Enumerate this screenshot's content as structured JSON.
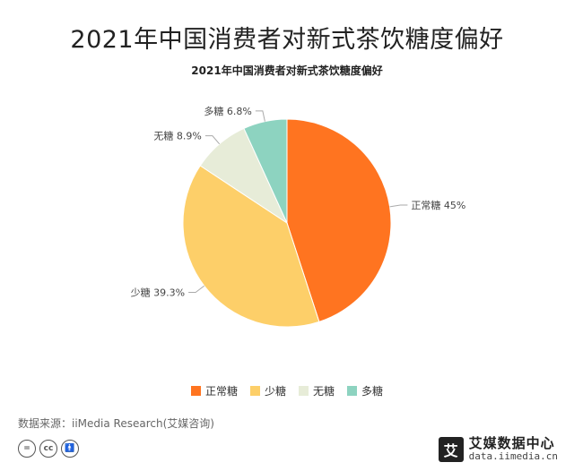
{
  "main_title": "2021年中国消费者对新式茶饮糖度偏好",
  "source": "数据来源：iiMedia Research(艾媒咨询)",
  "brand": {
    "logo_char": "艾",
    "name": "艾媒数据中心",
    "url": "data.iimedia.cn"
  },
  "license_icons": [
    "equal-icon",
    "cc-icon",
    "person-icon"
  ],
  "chart_data": {
    "type": "pie",
    "title": "2021年中国消费者对新式茶饮糖度偏好",
    "slices": [
      {
        "label": "正常糖",
        "value": 45,
        "display": "45%",
        "color": "#FF7420"
      },
      {
        "label": "少糖",
        "value": 39.3,
        "display": "39.3%",
        "color": "#FDCF69"
      },
      {
        "label": "无糖",
        "value": 8.9,
        "display": "8.9%",
        "color": "#E7ECD8"
      },
      {
        "label": "多糖",
        "value": 6.8,
        "display": "6.8%",
        "color": "#8DD3C0"
      }
    ],
    "legend_position": "bottom"
  }
}
